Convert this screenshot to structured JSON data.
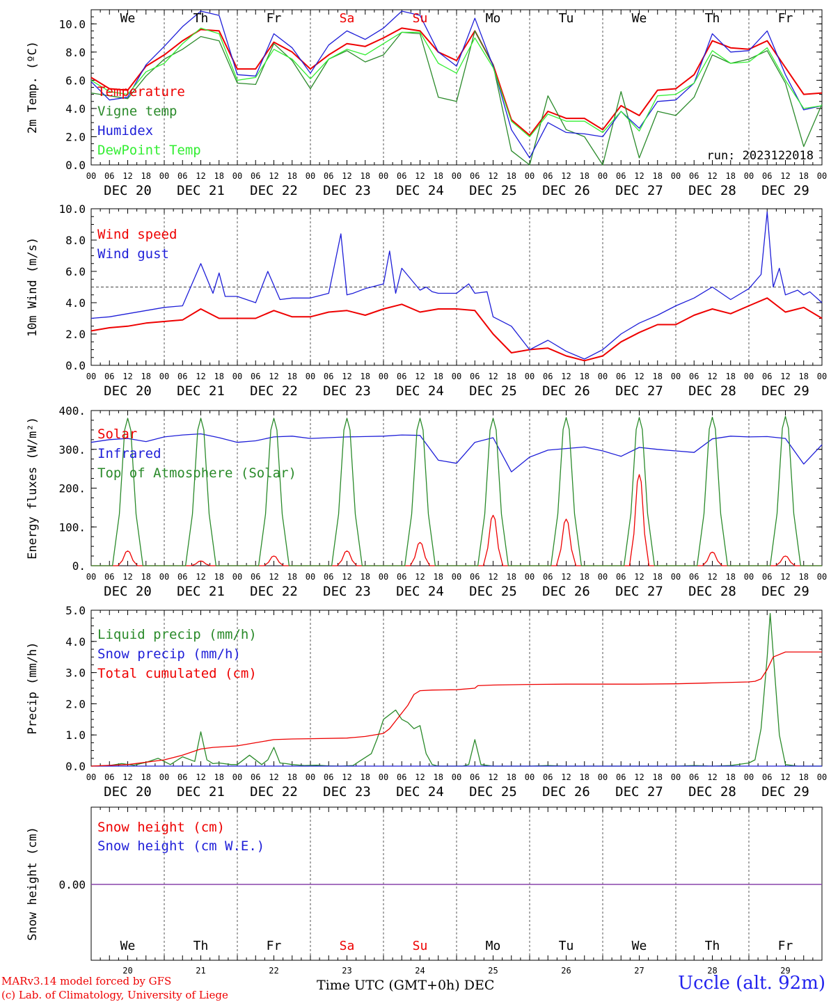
{
  "colors": {
    "red": "#ee0000",
    "green": "#2a8a2a",
    "blue": "#1e1ed8",
    "lightgreen": "#33ee33",
    "purple": "#8844aa",
    "weekday": "#000000",
    "weekend": "#ee0000"
  },
  "time_axis": {
    "hour_labels": [
      "00",
      "06",
      "12",
      "18"
    ],
    "final_hour_label": "00",
    "date_labels": [
      "DEC 20",
      "DEC 21",
      "DEC 22",
      "DEC 23",
      "DEC 24",
      "DEC 25",
      "DEC 26",
      "DEC 27",
      "DEC 28",
      "DEC 29"
    ],
    "weekdays": [
      {
        "label": "We",
        "weekend": false
      },
      {
        "label": "Th",
        "weekend": false
      },
      {
        "label": "Fr",
        "weekend": false
      },
      {
        "label": "Sa",
        "weekend": true
      },
      {
        "label": "Su",
        "weekend": true
      },
      {
        "label": "Mo",
        "weekend": false
      },
      {
        "label": "Tu",
        "weekend": false
      },
      {
        "label": "We",
        "weekend": false
      },
      {
        "label": "Th",
        "weekend": false
      },
      {
        "label": "Fr",
        "weekend": false
      }
    ],
    "day_numbers": [
      "20",
      "21",
      "22",
      "23",
      "24",
      "25",
      "26",
      "27",
      "28",
      "29"
    ]
  },
  "footer": {
    "credit_line1": "MARv3.14 model forced by GFS",
    "credit_line2": "(c) Lab. of Climatology, University of Liege",
    "x_title": "Time UTC (GMT+0h)",
    "x_month": "DEC",
    "station": "Uccle (alt. 92m)"
  },
  "chart_data": [
    {
      "id": "temp",
      "type": "line",
      "ylabel": "2m Temp. (ºC)",
      "ylim": [
        0,
        11
      ],
      "yticks": [
        0,
        2,
        4,
        6,
        8,
        10
      ],
      "ytick_labels": [
        "0.0",
        "2.0",
        "4.0",
        "6.0",
        "8.0",
        "10.0"
      ],
      "annotation": "run: 2023122018",
      "x_unit": "hours since DEC 20 00 UTC",
      "xlim": [
        0,
        240
      ],
      "series": [
        {
          "name": "Temperature",
          "color": "red",
          "x": [
            0,
            6,
            12,
            18,
            24,
            30,
            36,
            42,
            48,
            54,
            60,
            66,
            72,
            78,
            84,
            90,
            96,
            102,
            108,
            114,
            120,
            126,
            132,
            138,
            144,
            150,
            156,
            162,
            168,
            174,
            180,
            186,
            192,
            198,
            204,
            210,
            216,
            222,
            228,
            234,
            240
          ],
          "y": [
            6.2,
            5.4,
            5.3,
            7.0,
            7.8,
            8.8,
            9.6,
            9.5,
            6.8,
            6.8,
            8.7,
            8.0,
            6.8,
            7.8,
            8.6,
            8.4,
            9.0,
            9.7,
            9.5,
            8.0,
            7.4,
            9.5,
            7.1,
            3.2,
            2.1,
            3.8,
            3.3,
            3.3,
            2.5,
            4.2,
            3.5,
            5.3,
            5.4,
            6.4,
            8.8,
            8.3,
            8.2,
            8.8,
            6.9,
            5.0,
            5.1
          ]
        },
        {
          "name": "Vigne temp",
          "color": "green",
          "x": [
            0,
            6,
            12,
            18,
            24,
            30,
            36,
            42,
            48,
            54,
            60,
            66,
            72,
            78,
            84,
            90,
            96,
            102,
            108,
            114,
            120,
            126,
            132,
            138,
            144,
            150,
            156,
            162,
            168,
            174,
            180,
            186,
            192,
            198,
            204,
            210,
            216,
            222,
            228,
            234,
            240
          ],
          "y": [
            5.1,
            4.9,
            4.7,
            6.3,
            7.5,
            8.2,
            9.1,
            8.8,
            5.8,
            5.7,
            8.6,
            7.4,
            5.4,
            7.5,
            8.1,
            7.3,
            7.8,
            9.4,
            9.3,
            4.8,
            4.5,
            9.5,
            7.1,
            1.0,
            -0.5,
            4.9,
            2.5,
            2.0,
            0.0,
            5.2,
            0.5,
            3.8,
            3.5,
            4.8,
            7.8,
            7.2,
            7.5,
            8.1,
            5.8,
            1.3,
            4.3
          ]
        },
        {
          "name": "Humidex",
          "color": "blue",
          "x": [
            0,
            6,
            12,
            18,
            24,
            30,
            36,
            42,
            48,
            54,
            60,
            66,
            72,
            78,
            84,
            90,
            96,
            102,
            108,
            114,
            120,
            126,
            132,
            138,
            144,
            150,
            156,
            162,
            168,
            174,
            180,
            186,
            192,
            198,
            204,
            210,
            216,
            222,
            228,
            234,
            240
          ],
          "y": [
            5.9,
            4.6,
            4.8,
            7.1,
            8.4,
            9.8,
            10.9,
            10.6,
            6.4,
            6.3,
            9.3,
            8.3,
            6.5,
            8.5,
            9.5,
            8.9,
            9.7,
            10.9,
            10.6,
            8.0,
            7.0,
            10.4,
            7.0,
            2.5,
            0.5,
            3.0,
            2.3,
            2.2,
            2.0,
            3.8,
            2.6,
            4.5,
            4.6,
            5.8,
            9.3,
            8.0,
            8.1,
            9.5,
            6.4,
            3.9,
            4.2
          ]
        },
        {
          "name": "DewPoint Temp",
          "color": "lightgreen",
          "x": [
            0,
            6,
            12,
            18,
            24,
            30,
            36,
            42,
            48,
            54,
            60,
            66,
            72,
            78,
            84,
            90,
            96,
            102,
            108,
            114,
            120,
            126,
            132,
            138,
            144,
            150,
            156,
            162,
            168,
            174,
            180,
            186,
            192,
            198,
            204,
            210,
            216,
            222,
            228,
            234,
            240
          ],
          "y": [
            6.0,
            5.2,
            5.0,
            6.6,
            7.2,
            8.6,
            9.7,
            9.3,
            6.0,
            6.2,
            8.2,
            7.5,
            6.1,
            7.5,
            8.2,
            7.8,
            8.6,
            9.4,
            9.4,
            7.2,
            6.5,
            9.0,
            6.9,
            3.1,
            2.0,
            3.6,
            3.1,
            3.1,
            2.3,
            3.8,
            2.4,
            4.9,
            5.0,
            5.8,
            8.1,
            7.2,
            7.3,
            8.3,
            6.0,
            4.0,
            4.2
          ]
        }
      ]
    },
    {
      "id": "wind",
      "type": "line",
      "ylabel": "10m Wind (m/s)",
      "ylim": [
        0,
        10
      ],
      "yticks": [
        0,
        2,
        4,
        6,
        8,
        10
      ],
      "ytick_labels": [
        "0.0",
        "2.0",
        "4.0",
        "6.0",
        "8.0",
        "10.0"
      ],
      "reference_line": 5.0,
      "x_unit": "hours since DEC 20 00 UTC",
      "xlim": [
        0,
        240
      ],
      "series": [
        {
          "name": "Wind speed",
          "color": "red",
          "x": [
            0,
            6,
            12,
            18,
            24,
            30,
            36,
            42,
            48,
            54,
            60,
            66,
            72,
            78,
            84,
            90,
            96,
            102,
            108,
            114,
            120,
            126,
            132,
            138,
            144,
            150,
            156,
            162,
            168,
            174,
            180,
            186,
            192,
            198,
            204,
            210,
            216,
            222,
            228,
            234,
            240
          ],
          "y": [
            2.2,
            2.4,
            2.5,
            2.7,
            2.8,
            2.9,
            3.6,
            3.0,
            3.0,
            3.0,
            3.5,
            3.1,
            3.1,
            3.4,
            3.5,
            3.2,
            3.6,
            3.9,
            3.4,
            3.6,
            3.6,
            3.5,
            2.0,
            0.8,
            1.0,
            1.1,
            0.6,
            0.3,
            0.6,
            1.5,
            2.1,
            2.6,
            2.6,
            3.2,
            3.6,
            3.3,
            3.8,
            4.3,
            3.4,
            3.7,
            3.0
          ]
        },
        {
          "name": "Wind gust",
          "color": "blue",
          "x": [
            0,
            6,
            12,
            18,
            24,
            30,
            36,
            40,
            42,
            44,
            48,
            54,
            58,
            62,
            66,
            72,
            78,
            82,
            84,
            86,
            90,
            96,
            98,
            100,
            102,
            108,
            110,
            112,
            114,
            120,
            124,
            126,
            130,
            132,
            138,
            144,
            150,
            156,
            162,
            168,
            174,
            180,
            186,
            192,
            198,
            204,
            210,
            216,
            220,
            222,
            224,
            226,
            228,
            232,
            234,
            236,
            240
          ],
          "y": [
            3.0,
            3.1,
            3.3,
            3.5,
            3.7,
            3.8,
            6.5,
            4.6,
            5.9,
            4.4,
            4.4,
            4.0,
            6.0,
            4.2,
            4.3,
            4.3,
            4.6,
            8.4,
            4.5,
            4.6,
            4.9,
            5.2,
            7.3,
            4.6,
            6.2,
            4.8,
            5.0,
            4.7,
            4.6,
            4.6,
            5.2,
            4.6,
            4.7,
            3.1,
            2.5,
            1.0,
            1.6,
            0.9,
            0.4,
            1.0,
            2.0,
            2.7,
            3.2,
            3.8,
            4.3,
            5.0,
            4.2,
            4.9,
            5.8,
            9.8,
            5.0,
            6.2,
            4.5,
            4.8,
            4.5,
            4.7,
            4.0
          ]
        }
      ]
    },
    {
      "id": "flux",
      "type": "line",
      "ylabel": "Energy fluxes (W/m²)",
      "ylim": [
        0,
        400
      ],
      "yticks": [
        0,
        100,
        200,
        300,
        400
      ],
      "ytick_labels": [
        "0.",
        "100.",
        "200.",
        "300.",
        "400."
      ],
      "x_unit": "hours since DEC 20 00 UTC",
      "xlim": [
        0,
        240
      ],
      "series": [
        {
          "name": "Solar",
          "color": "red",
          "daily_peaks": [
            38,
            12,
            25,
            38,
            60,
            130,
            120,
            235,
            35,
            25
          ]
        },
        {
          "name": "Infrared",
          "color": "blue",
          "x": [
            0,
            6,
            12,
            18,
            24,
            30,
            36,
            42,
            48,
            54,
            60,
            66,
            72,
            78,
            84,
            90,
            96,
            102,
            108,
            114,
            120,
            126,
            132,
            138,
            144,
            150,
            156,
            162,
            168,
            174,
            180,
            186,
            192,
            198,
            204,
            210,
            216,
            222,
            228,
            234,
            240
          ],
          "y": [
            318,
            325,
            328,
            320,
            332,
            337,
            340,
            330,
            318,
            322,
            332,
            334,
            328,
            330,
            332,
            333,
            334,
            337,
            336,
            272,
            264,
            318,
            330,
            242,
            280,
            298,
            302,
            306,
            296,
            282,
            305,
            300,
            296,
            292,
            327,
            334,
            332,
            333,
            328,
            262,
            312
          ]
        },
        {
          "name": "Top of Atmosphere (Solar)",
          "color": "green",
          "daily_peaks": [
            380,
            380,
            380,
            380,
            380,
            380,
            382,
            382,
            383,
            385
          ]
        }
      ]
    },
    {
      "id": "precip",
      "type": "line",
      "ylabel": "Precip (mm/h)",
      "ylim": [
        0,
        5
      ],
      "yticks": [
        0,
        1,
        2,
        3,
        4,
        5
      ],
      "ytick_labels": [
        "0.0",
        "1.0",
        "2.0",
        "3.0",
        "4.0",
        "5.0"
      ],
      "x_unit": "hours since DEC 20 00 UTC",
      "xlim": [
        0,
        240
      ],
      "series": [
        {
          "name": "Liquid precip (mm/h)",
          "color": "green",
          "x": [
            0,
            6,
            10,
            14,
            18,
            22,
            26,
            30,
            34,
            36,
            38,
            40,
            42,
            46,
            48,
            52,
            56,
            58,
            60,
            62,
            64,
            66,
            70,
            74,
            78,
            82,
            86,
            88,
            92,
            94,
            96,
            100,
            102,
            104,
            106,
            108,
            110,
            112,
            114,
            118,
            122,
            124,
            126,
            128,
            132,
            138,
            144,
            150,
            156,
            162,
            168,
            174,
            180,
            186,
            192,
            198,
            204,
            210,
            216,
            218,
            220,
            222,
            223,
            224,
            226,
            228,
            232,
            240
          ],
          "y": [
            0,
            0.02,
            0.08,
            0.03,
            0.12,
            0.25,
            0.05,
            0.3,
            0.15,
            1.1,
            0.2,
            0.08,
            0.1,
            0.05,
            0.05,
            0.35,
            0.05,
            0.2,
            0.6,
            0.1,
            0.08,
            0.05,
            0.02,
            0.03,
            0.01,
            0,
            0.02,
            0.15,
            0.4,
            0.9,
            1.5,
            1.8,
            1.5,
            1.4,
            1.2,
            1.3,
            0.4,
            0.05,
            0,
            0,
            0,
            0.05,
            0.85,
            0.05,
            0,
            0,
            0,
            0.02,
            0,
            0,
            0,
            0,
            0,
            0,
            0,
            0.02,
            0,
            0.02,
            0.1,
            0.2,
            1.2,
            3.5,
            4.9,
            3.6,
            1.0,
            0.05,
            0,
            0
          ]
        },
        {
          "name": "Snow precip (mm/h)",
          "color": "blue",
          "x": [
            0,
            240
          ],
          "y": [
            0,
            0
          ]
        },
        {
          "name": "Total cumulated (cm)",
          "color": "red",
          "x": [
            0,
            12,
            24,
            30,
            36,
            40,
            48,
            54,
            60,
            66,
            72,
            84,
            90,
            96,
            98,
            100,
            104,
            106,
            108,
            112,
            120,
            126,
            127,
            132,
            144,
            156,
            168,
            180,
            192,
            204,
            216,
            218,
            220,
            222,
            224,
            228,
            240
          ],
          "y": [
            0,
            0.05,
            0.2,
            0.35,
            0.55,
            0.6,
            0.65,
            0.75,
            0.85,
            0.87,
            0.88,
            0.9,
            0.95,
            1.05,
            1.2,
            1.45,
            1.95,
            2.3,
            2.42,
            2.44,
            2.45,
            2.5,
            2.58,
            2.6,
            2.62,
            2.63,
            2.63,
            2.63,
            2.64,
            2.67,
            2.7,
            2.72,
            2.8,
            3.1,
            3.5,
            3.66,
            3.66
          ]
        }
      ]
    },
    {
      "id": "snow",
      "type": "line",
      "ylabel": "Snow height (cm)",
      "center_tick_label": "0.00",
      "x_unit": "hours since DEC 20 00 UTC",
      "xlim": [
        0,
        240
      ],
      "series": [
        {
          "name": "Snow height (cm)",
          "color": "red",
          "x": [
            0,
            240
          ],
          "y": [
            0,
            0
          ]
        },
        {
          "name": "Snow height (cm W.E.)",
          "color": "blue",
          "x": [
            0,
            240
          ],
          "y": [
            0,
            0
          ]
        }
      ]
    }
  ]
}
